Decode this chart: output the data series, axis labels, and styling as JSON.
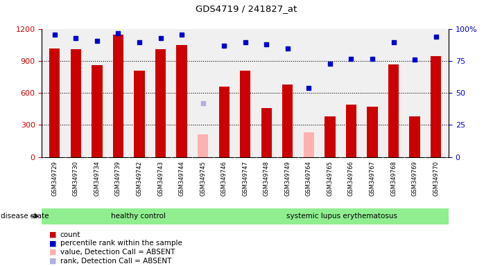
{
  "title": "GDS4719 / 241827_at",
  "samples": [
    "GSM349729",
    "GSM349730",
    "GSM349734",
    "GSM349739",
    "GSM349742",
    "GSM349743",
    "GSM349744",
    "GSM349745",
    "GSM349746",
    "GSM349747",
    "GSM349748",
    "GSM349749",
    "GSM349764",
    "GSM349765",
    "GSM349766",
    "GSM349767",
    "GSM349768",
    "GSM349769",
    "GSM349770"
  ],
  "counts": [
    1020,
    1010,
    860,
    1150,
    810,
    1010,
    1050,
    null,
    660,
    810,
    460,
    680,
    null,
    380,
    490,
    470,
    870,
    380,
    950
  ],
  "absent_values": [
    null,
    null,
    null,
    null,
    null,
    null,
    null,
    210,
    null,
    null,
    null,
    null,
    230,
    null,
    null,
    null,
    null,
    null,
    null
  ],
  "percentile_ranks": [
    96,
    93,
    91,
    97,
    90,
    93,
    96,
    null,
    87,
    90,
    88,
    85,
    54,
    73,
    77,
    77,
    90,
    76,
    94
  ],
  "absent_ranks": [
    null,
    null,
    null,
    null,
    null,
    null,
    null,
    42,
    null,
    null,
    null,
    null,
    null,
    null,
    null,
    null,
    null,
    null,
    null
  ],
  "ylim_left": [
    0,
    1200
  ],
  "ylim_right": [
    0,
    100
  ],
  "yticks_left": [
    0,
    300,
    600,
    900,
    1200
  ],
  "yticks_right": [
    0,
    25,
    50,
    75,
    100
  ],
  "bar_color": "#cc0000",
  "absent_bar_color": "#ffb0b0",
  "dot_color": "#0000cc",
  "absent_dot_color": "#b0b0dd",
  "bg_color": "#ffffff",
  "label_bg_color": "#d0d0d0",
  "grid_color": "#000000",
  "healthy_count": 9,
  "disease_state_label": "disease state",
  "group1_label": "healthy control",
  "group2_label": "systemic lupus erythematosus",
  "group_color": "#90ee90",
  "legend_items": [
    {
      "label": "count",
      "color": "#cc0000"
    },
    {
      "label": "percentile rank within the sample",
      "color": "#0000cc"
    },
    {
      "label": "value, Detection Call = ABSENT",
      "color": "#ffb0b0"
    },
    {
      "label": "rank, Detection Call = ABSENT",
      "color": "#b0b0dd"
    }
  ]
}
